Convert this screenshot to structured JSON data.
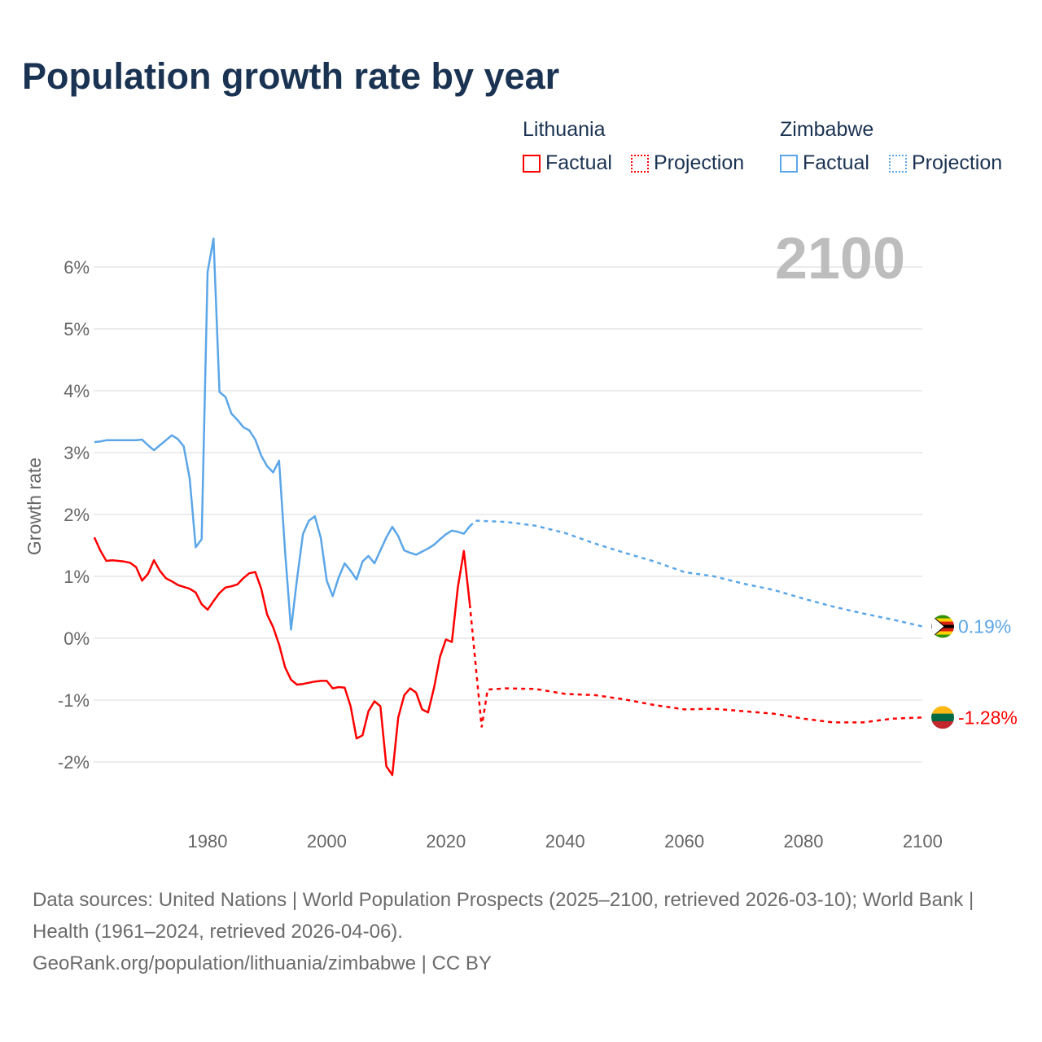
{
  "title": "Population growth rate by year",
  "legend": {
    "groups": [
      {
        "name": "Lithuania",
        "factual": "Factual",
        "projection": "Projection",
        "color": "#ff0000"
      },
      {
        "name": "Zimbabwe",
        "factual": "Factual",
        "projection": "Projection",
        "color": "#5ba6e8"
      }
    ]
  },
  "footer": {
    "line1": "Data sources: United Nations | World Population Prospects (2025–2100, retrieved 2026-03-10); World Bank | Health (1961–2024, retrieved 2026-04-06).",
    "line2": "GeoRank.org/population/lithuania/zimbabwe | CC BY"
  },
  "chart_data": {
    "type": "line",
    "title": "Population growth rate by year",
    "xlabel": "",
    "ylabel": "Growth rate",
    "year_watermark": "2100",
    "xlim": [
      1961,
      2100
    ],
    "ylim": [
      -2.9,
      6.5
    ],
    "x_ticks": [
      1980,
      2000,
      2020,
      2040,
      2060,
      2080,
      2100
    ],
    "x_tick_labels": [
      "1980",
      "2000",
      "2020",
      "2040",
      "2060",
      "2080",
      "2100"
    ],
    "y_ticks": [
      -2,
      -1,
      0,
      1,
      2,
      3,
      4,
      5,
      6
    ],
    "y_tick_labels": [
      "-2%",
      "-1%",
      "0%",
      "1%",
      "2%",
      "3%",
      "4%",
      "5%",
      "6%"
    ],
    "grid": true,
    "legend_position": "top-right",
    "series": [
      {
        "name": "Zimbabwe",
        "color": "#5ba6e8",
        "end_label": "0.19%",
        "factual": {
          "x": [
            1961,
            1962,
            1963,
            1964,
            1965,
            1966,
            1967,
            1968,
            1969,
            1970,
            1971,
            1972,
            1973,
            1974,
            1975,
            1976,
            1977,
            1978,
            1979,
            1980,
            1981,
            1982,
            1983,
            1984,
            1985,
            1986,
            1987,
            1988,
            1989,
            1990,
            1991,
            1992,
            1993,
            1994,
            1995,
            1996,
            1997,
            1998,
            1999,
            2000,
            2001,
            2002,
            2003,
            2004,
            2005,
            2006,
            2007,
            2008,
            2009,
            2010,
            2011,
            2012,
            2013,
            2014,
            2015,
            2016,
            2017,
            2018,
            2019,
            2020,
            2021,
            2022,
            2023,
            2024
          ],
          "y": [
            3.17,
            3.18,
            3.2,
            3.2,
            3.2,
            3.2,
            3.2,
            3.2,
            3.21,
            3.12,
            3.04,
            3.12,
            3.2,
            3.28,
            3.22,
            3.1,
            2.58,
            1.47,
            1.6,
            5.92,
            6.46,
            3.98,
            3.9,
            3.63,
            3.53,
            3.41,
            3.36,
            3.21,
            2.95,
            2.78,
            2.68,
            2.87,
            1.4,
            0.14,
            0.95,
            1.68,
            1.9,
            1.97,
            1.62,
            0.93,
            0.68,
            0.98,
            1.21,
            1.09,
            0.95,
            1.24,
            1.33,
            1.21,
            1.42,
            1.63,
            1.8,
            1.65,
            1.42,
            1.38,
            1.35,
            1.4,
            1.45,
            1.51,
            1.6,
            1.68,
            1.74,
            1.72,
            1.69,
            1.81
          ]
        },
        "projection": {
          "x": [
            2024,
            2025,
            2030,
            2035,
            2040,
            2045,
            2050,
            2055,
            2060,
            2065,
            2070,
            2075,
            2080,
            2085,
            2090,
            2095,
            2100
          ],
          "y": [
            1.81,
            1.9,
            1.88,
            1.82,
            1.7,
            1.53,
            1.38,
            1.24,
            1.07,
            1.0,
            0.88,
            0.78,
            0.64,
            0.51,
            0.4,
            0.3,
            0.19
          ]
        }
      },
      {
        "name": "Lithuania",
        "color": "#ff0000",
        "end_label": "-1.28%",
        "factual": {
          "x": [
            1961,
            1962,
            1963,
            1964,
            1965,
            1966,
            1967,
            1968,
            1969,
            1970,
            1971,
            1972,
            1973,
            1974,
            1975,
            1976,
            1977,
            1978,
            1979,
            1980,
            1981,
            1982,
            1983,
            1984,
            1985,
            1986,
            1987,
            1988,
            1989,
            1990,
            1991,
            1992,
            1993,
            1994,
            1995,
            1996,
            1997,
            1998,
            1999,
            2000,
            2001,
            2002,
            2003,
            2004,
            2005,
            2006,
            2007,
            2008,
            2009,
            2010,
            2011,
            2012,
            2013,
            2014,
            2015,
            2016,
            2017,
            2018,
            2019,
            2020,
            2021,
            2022,
            2023,
            2024
          ],
          "y": [
            1.63,
            1.42,
            1.25,
            1.26,
            1.25,
            1.24,
            1.22,
            1.15,
            0.93,
            1.04,
            1.26,
            1.09,
            0.97,
            0.92,
            0.86,
            0.83,
            0.8,
            0.74,
            0.55,
            0.46,
            0.6,
            0.73,
            0.82,
            0.84,
            0.87,
            0.97,
            1.05,
            1.07,
            0.8,
            0.38,
            0.18,
            -0.1,
            -0.47,
            -0.67,
            -0.75,
            -0.74,
            -0.72,
            -0.7,
            -0.69,
            -0.69,
            -0.81,
            -0.79,
            -0.8,
            -1.1,
            -1.62,
            -1.57,
            -1.18,
            -1.02,
            -1.1,
            -2.07,
            -2.21,
            -1.28,
            -0.92,
            -0.81,
            -0.88,
            -1.15,
            -1.2,
            -0.8,
            -0.3,
            -0.02,
            -0.06,
            0.82,
            1.41,
            0.55
          ]
        },
        "projection": {
          "x": [
            2024,
            2026,
            2027,
            2030,
            2035,
            2040,
            2045,
            2050,
            2055,
            2060,
            2065,
            2070,
            2075,
            2080,
            2085,
            2090,
            2095,
            2100
          ],
          "y": [
            0.55,
            -1.44,
            -0.83,
            -0.81,
            -0.82,
            -0.9,
            -0.92,
            -0.99,
            -1.08,
            -1.15,
            -1.14,
            -1.18,
            -1.22,
            -1.3,
            -1.36,
            -1.36,
            -1.3,
            -1.28
          ]
        }
      }
    ]
  }
}
